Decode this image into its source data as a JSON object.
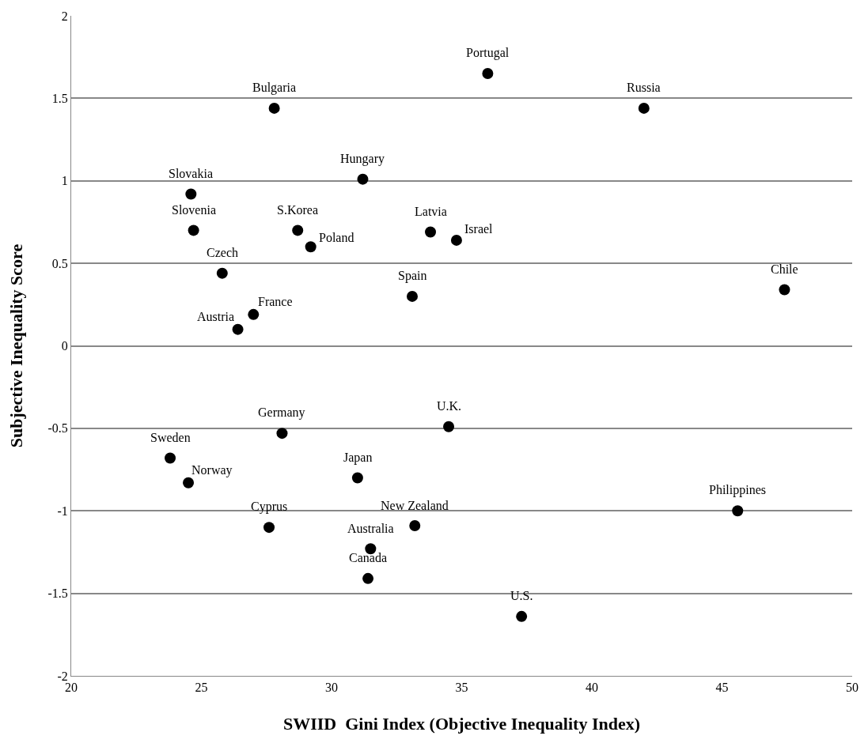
{
  "chart_data": {
    "type": "scatter",
    "xlabel": "SWIID  Gini Index (Objective Inequality Index)",
    "ylabel": "Subjective Inequality Score",
    "x": [
      36.0,
      42.0,
      27.8,
      31.2,
      24.6,
      24.7,
      28.7,
      29.2,
      33.8,
      34.8,
      25.8,
      33.1,
      47.4,
      27.0,
      26.4,
      28.1,
      34.5,
      23.8,
      24.5,
      31.0,
      45.6,
      27.6,
      33.2,
      31.5,
      31.4,
      37.3
    ],
    "values": [
      1.65,
      1.44,
      1.44,
      1.01,
      0.92,
      0.7,
      0.7,
      0.6,
      0.69,
      0.64,
      0.44,
      0.3,
      0.34,
      0.19,
      0.1,
      -0.53,
      -0.49,
      -0.68,
      -0.83,
      -0.8,
      -1.0,
      -1.1,
      -1.09,
      -1.23,
      -1.41,
      -1.64
    ],
    "color": "#000000",
    "marker": "circle",
    "grid": "y",
    "xlim": [
      20,
      50
    ],
    "xticks": [
      20,
      25,
      30,
      35,
      40,
      45,
      50
    ],
    "ylim": [
      -2,
      2
    ],
    "yticks": [
      -2,
      -1.5,
      -1,
      -0.5,
      0,
      0.5,
      1,
      1.5,
      2
    ],
    "annotations": [
      {
        "text": "Portugal",
        "x": 36.0,
        "y": 1.65
      },
      {
        "text": "Russia",
        "x": 42.0,
        "y": 1.44
      },
      {
        "text": "Bulgaria",
        "x": 27.8,
        "y": 1.44
      },
      {
        "text": "Hungary",
        "x": 31.2,
        "y": 1.01
      },
      {
        "text": "Slovakia",
        "x": 24.6,
        "y": 0.92
      },
      {
        "text": "Slovenia",
        "x": 24.7,
        "y": 0.7
      },
      {
        "text": "S.Korea",
        "x": 28.7,
        "y": 0.7
      },
      {
        "text": "Poland",
        "x": 29.2,
        "y": 0.6
      },
      {
        "text": "Latvia",
        "x": 33.8,
        "y": 0.69
      },
      {
        "text": "Israel",
        "x": 34.8,
        "y": 0.64
      },
      {
        "text": "Czech",
        "x": 25.8,
        "y": 0.44
      },
      {
        "text": "Spain",
        "x": 33.1,
        "y": 0.3
      },
      {
        "text": "Chile",
        "x": 47.4,
        "y": 0.34
      },
      {
        "text": "France",
        "x": 27.0,
        "y": 0.19
      },
      {
        "text": "Austria",
        "x": 26.4,
        "y": 0.1
      },
      {
        "text": "Germany",
        "x": 28.1,
        "y": -0.53
      },
      {
        "text": "U.K.",
        "x": 34.5,
        "y": -0.49
      },
      {
        "text": "Sweden",
        "x": 23.8,
        "y": -0.68
      },
      {
        "text": "Norway",
        "x": 24.5,
        "y": -0.83
      },
      {
        "text": "Japan",
        "x": 31.0,
        "y": -0.8
      },
      {
        "text": "Philippines",
        "x": 45.6,
        "y": -1.0
      },
      {
        "text": "Cyprus",
        "x": 27.6,
        "y": -1.1
      },
      {
        "text": "New Zealand",
        "x": 33.2,
        "y": -1.09
      },
      {
        "text": "Australia",
        "x": 31.5,
        "y": -1.23
      },
      {
        "text": "Canada",
        "x": 31.4,
        "y": -1.41
      },
      {
        "text": "U.S.",
        "x": 37.3,
        "y": -1.64
      }
    ]
  }
}
